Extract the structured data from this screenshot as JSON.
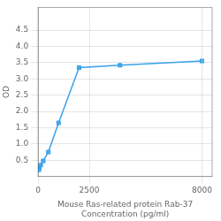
{
  "chart_data": {
    "type": "line",
    "x": [
      31.25,
      62.5,
      125,
      250,
      500,
      1000,
      2000,
      4000,
      8000
    ],
    "values": [
      0.2,
      0.27,
      0.35,
      0.48,
      0.75,
      1.65,
      3.35,
      3.42,
      3.55
    ],
    "xlabel": [
      "Mouse Ras-related protein Rab-37",
      "Concentration (pg/ml)"
    ],
    "ylabel": "OD",
    "xlim": [
      0,
      8500
    ],
    "xticks": [
      0,
      2500,
      8000
    ],
    "ylim": [
      0,
      5.2
    ],
    "yticks": [
      0.5,
      {
        "value": 1,
        "label": "1.0"
      },
      1.5,
      {
        "value": 2,
        "label": "2.0"
      },
      2.5,
      {
        "value": 3,
        "label": "3.0"
      },
      3.5,
      {
        "value": 4,
        "label": "4.0"
      },
      4.5
    ],
    "marker": "square",
    "line_style": "solid",
    "grid": true
  }
}
